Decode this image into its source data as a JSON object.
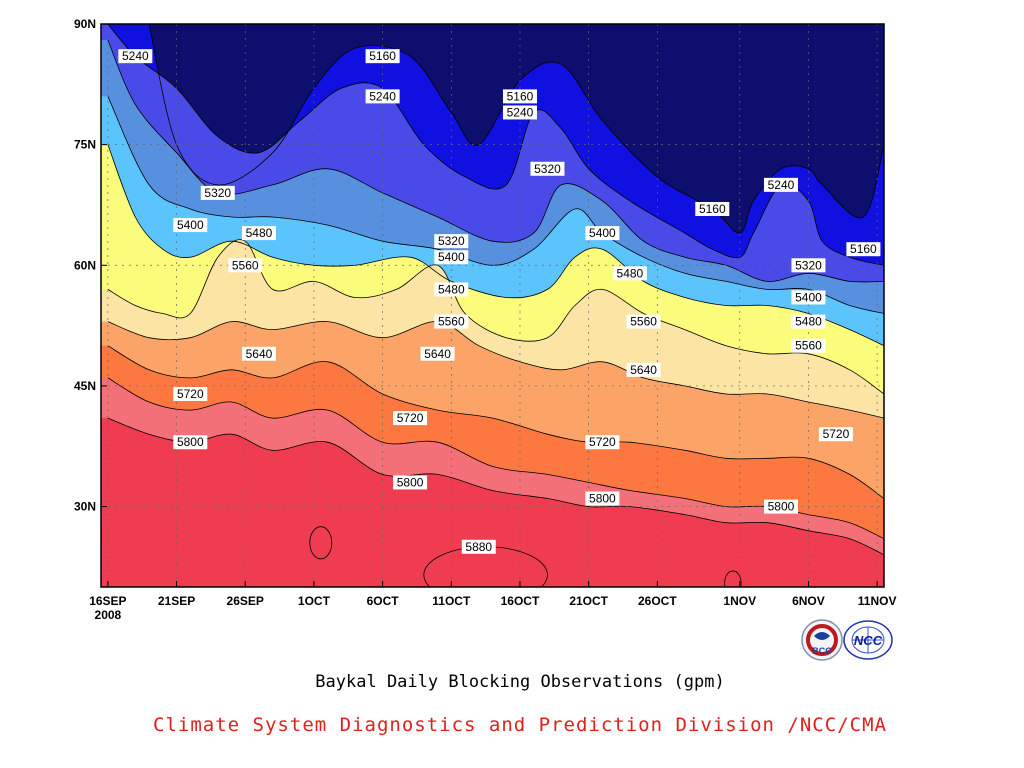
{
  "chart_data": {
    "type": "heatmap",
    "subtitle": "Baykal Daily Blocking Observations (gpm)",
    "credit": "Climate System Diagnostics and Prediction Division /NCC/CMA",
    "x_ticks": [
      {
        "label": "16SEP",
        "sub": "2008",
        "day": 0
      },
      {
        "label": "21SEP",
        "sub": "",
        "day": 5
      },
      {
        "label": "26SEP",
        "sub": "",
        "day": 10
      },
      {
        "label": "1OCT",
        "sub": "",
        "day": 15
      },
      {
        "label": "6OCT",
        "sub": "",
        "day": 20
      },
      {
        "label": "11OCT",
        "sub": "",
        "day": 25
      },
      {
        "label": "16OCT",
        "sub": "",
        "day": 30
      },
      {
        "label": "21OCT",
        "sub": "",
        "day": 35
      },
      {
        "label": "26OCT",
        "sub": "",
        "day": 40
      },
      {
        "label": "1NOV",
        "sub": "",
        "day": 46
      },
      {
        "label": "6NOV",
        "sub": "",
        "day": 51
      },
      {
        "label": "11NOV",
        "sub": "",
        "day": 56
      }
    ],
    "y_ticks": [
      {
        "label": "90N",
        "lat": 90
      },
      {
        "label": "75N",
        "lat": 75
      },
      {
        "label": "60N",
        "lat": 60
      },
      {
        "label": "45N",
        "lat": 45
      },
      {
        "label": "30N",
        "lat": 30
      }
    ],
    "xlim": [
      -0.5,
      56.5
    ],
    "ylim": [
      20,
      90
    ],
    "grid": true,
    "contour_levels": [
      5160,
      5240,
      5320,
      5400,
      5480,
      5560,
      5640,
      5720,
      5800,
      5880
    ],
    "band_colors": [
      "#0e0e6e",
      "#1010e0",
      "#4a4ae8",
      "#5890e0",
      "#5cc4fc",
      "#fcfc7c",
      "#fce4a4",
      "#fca468",
      "#fc7840",
      "#f47078",
      "#f03c50"
    ],
    "contour_lines": [
      {
        "level": 5160,
        "points": [
          [
            3,
            90
          ],
          [
            5,
            75
          ],
          [
            8,
            70
          ],
          [
            12,
            74
          ],
          [
            15,
            82
          ],
          [
            18,
            87
          ],
          [
            22,
            86
          ],
          [
            25,
            79
          ],
          [
            27,
            75
          ],
          [
            30,
            83
          ],
          [
            33,
            85
          ],
          [
            36,
            78
          ],
          [
            40,
            71
          ],
          [
            44,
            67
          ],
          [
            46,
            64
          ],
          [
            47,
            68
          ],
          [
            49,
            72
          ],
          [
            51,
            72
          ],
          [
            52,
            70
          ],
          [
            55,
            66
          ],
          [
            56.5,
            75
          ]
        ]
      },
      {
        "level": 5240,
        "points": [
          [
            0,
            90
          ],
          [
            2,
            86
          ],
          [
            5,
            82
          ],
          [
            8,
            76
          ],
          [
            11,
            74
          ],
          [
            14,
            78
          ],
          [
            17,
            82
          ],
          [
            20,
            82
          ],
          [
            23,
            75
          ],
          [
            26,
            71
          ],
          [
            29,
            70
          ],
          [
            31,
            79
          ],
          [
            33,
            77
          ],
          [
            35,
            72
          ],
          [
            38,
            68
          ],
          [
            42,
            64
          ],
          [
            44,
            62
          ],
          [
            46,
            61
          ],
          [
            47,
            64
          ],
          [
            49,
            70
          ],
          [
            51,
            68
          ],
          [
            52,
            63
          ],
          [
            54,
            61
          ],
          [
            56.5,
            60
          ]
        ]
      },
      {
        "level": 5320,
        "points": [
          [
            0,
            88
          ],
          [
            2,
            80
          ],
          [
            5,
            74
          ],
          [
            8,
            69
          ],
          [
            12,
            70
          ],
          [
            16,
            72
          ],
          [
            20,
            69
          ],
          [
            24,
            66
          ],
          [
            28,
            63
          ],
          [
            31,
            64
          ],
          [
            33,
            70
          ],
          [
            36,
            68
          ],
          [
            39,
            63
          ],
          [
            42,
            61
          ],
          [
            45,
            60
          ],
          [
            48,
            58
          ],
          [
            51,
            59
          ],
          [
            54,
            58
          ],
          [
            56.5,
            58
          ]
        ]
      },
      {
        "level": 5400,
        "points": [
          [
            0,
            81
          ],
          [
            3,
            70
          ],
          [
            6,
            67
          ],
          [
            9,
            66
          ],
          [
            12,
            66
          ],
          [
            16,
            65
          ],
          [
            20,
            63
          ],
          [
            24,
            62
          ],
          [
            28,
            60
          ],
          [
            31,
            62
          ],
          [
            34,
            67
          ],
          [
            36,
            64
          ],
          [
            39,
            61
          ],
          [
            42,
            59
          ],
          [
            45,
            58
          ],
          [
            48,
            57
          ],
          [
            51,
            57
          ],
          [
            54,
            55
          ],
          [
            56.5,
            54
          ]
        ]
      },
      {
        "level": 5480,
        "points": [
          [
            0,
            75
          ],
          [
            2,
            66
          ],
          [
            4,
            62
          ],
          [
            6,
            61
          ],
          [
            9,
            63
          ],
          [
            12,
            61
          ],
          [
            15,
            60
          ],
          [
            18,
            60
          ],
          [
            22,
            61
          ],
          [
            25,
            58
          ],
          [
            29,
            56
          ],
          [
            32,
            57
          ],
          [
            34,
            61
          ],
          [
            36,
            62
          ],
          [
            39,
            58
          ],
          [
            42,
            56
          ],
          [
            45,
            55
          ],
          [
            48,
            55
          ],
          [
            51,
            54
          ],
          [
            54,
            52
          ],
          [
            56.5,
            50
          ]
        ]
      },
      {
        "level": 5560,
        "points": [
          [
            0,
            57
          ],
          [
            2,
            55
          ],
          [
            4,
            54
          ],
          [
            6,
            54
          ],
          [
            8,
            61
          ],
          [
            10,
            63
          ],
          [
            12,
            57
          ],
          [
            15,
            58
          ],
          [
            18,
            56
          ],
          [
            21,
            57
          ],
          [
            24,
            60
          ],
          [
            26,
            54
          ],
          [
            29,
            51
          ],
          [
            32,
            51
          ],
          [
            34,
            55
          ],
          [
            36,
            57
          ],
          [
            39,
            54
          ],
          [
            42,
            52
          ],
          [
            45,
            50
          ],
          [
            48,
            49
          ],
          [
            51,
            49
          ],
          [
            54,
            47
          ],
          [
            56.5,
            44
          ]
        ]
      },
      {
        "level": 5640,
        "points": [
          [
            0,
            53
          ],
          [
            3,
            51
          ],
          [
            6,
            51
          ],
          [
            9,
            53
          ],
          [
            12,
            52
          ],
          [
            16,
            53
          ],
          [
            20,
            51
          ],
          [
            24,
            53
          ],
          [
            27,
            50
          ],
          [
            30,
            48
          ],
          [
            33,
            47
          ],
          [
            36,
            48
          ],
          [
            39,
            46
          ],
          [
            42,
            45
          ],
          [
            45,
            44
          ],
          [
            48,
            44
          ],
          [
            51,
            43
          ],
          [
            54,
            42
          ],
          [
            56.5,
            41
          ]
        ]
      },
      {
        "level": 5720,
        "points": [
          [
            0,
            50
          ],
          [
            3,
            47
          ],
          [
            6,
            46
          ],
          [
            9,
            47
          ],
          [
            12,
            46
          ],
          [
            16,
            48
          ],
          [
            20,
            44
          ],
          [
            24,
            42
          ],
          [
            28,
            41
          ],
          [
            32,
            39
          ],
          [
            35,
            38
          ],
          [
            38,
            38
          ],
          [
            42,
            37
          ],
          [
            45,
            36
          ],
          [
            48,
            36
          ],
          [
            51,
            36
          ],
          [
            54,
            34
          ],
          [
            56.5,
            31
          ]
        ]
      },
      {
        "level": 5800,
        "points": [
          [
            0,
            46
          ],
          [
            3,
            43
          ],
          [
            6,
            42
          ],
          [
            9,
            43
          ],
          [
            12,
            41
          ],
          [
            16,
            42
          ],
          [
            20,
            38
          ],
          [
            24,
            38
          ],
          [
            28,
            35
          ],
          [
            32,
            34
          ],
          [
            35,
            33
          ],
          [
            38,
            32
          ],
          [
            42,
            31
          ],
          [
            45,
            30
          ],
          [
            48,
            30
          ],
          [
            51,
            29
          ],
          [
            54,
            28
          ],
          [
            56.5,
            26
          ]
        ]
      },
      {
        "level": 5880,
        "points": [
          [
            0,
            41
          ],
          [
            3,
            39
          ],
          [
            6,
            38
          ],
          [
            9,
            39
          ],
          [
            12,
            37
          ],
          [
            16,
            38
          ],
          [
            20,
            34
          ],
          [
            24,
            34
          ],
          [
            28,
            32
          ],
          [
            32,
            31
          ],
          [
            35,
            30
          ],
          [
            38,
            30
          ],
          [
            42,
            29
          ],
          [
            45,
            28
          ],
          [
            48,
            28
          ],
          [
            51,
            27
          ],
          [
            54,
            26
          ],
          [
            56.5,
            24
          ]
        ]
      }
    ],
    "contour_labels": [
      {
        "text": "5240",
        "day": 2,
        "lat": 86
      },
      {
        "text": "5160",
        "day": 20,
        "lat": 86
      },
      {
        "text": "5240",
        "day": 20,
        "lat": 81
      },
      {
        "text": "5160",
        "day": 30,
        "lat": 81
      },
      {
        "text": "5240",
        "day": 30,
        "lat": 79
      },
      {
        "text": "5320",
        "day": 32,
        "lat": 72
      },
      {
        "text": "5240",
        "day": 49,
        "lat": 70
      },
      {
        "text": "5160",
        "day": 44,
        "lat": 67
      },
      {
        "text": "5160",
        "day": 55,
        "lat": 62
      },
      {
        "text": "5320",
        "day": 8,
        "lat": 69
      },
      {
        "text": "5400",
        "day": 6,
        "lat": 65
      },
      {
        "text": "5480",
        "day": 11,
        "lat": 64
      },
      {
        "text": "5320",
        "day": 25,
        "lat": 63
      },
      {
        "text": "5400",
        "day": 25,
        "lat": 61
      },
      {
        "text": "5400",
        "day": 36,
        "lat": 64
      },
      {
        "text": "5560",
        "day": 10,
        "lat": 60
      },
      {
        "text": "5480",
        "day": 25,
        "lat": 57
      },
      {
        "text": "5480",
        "day": 38,
        "lat": 59
      },
      {
        "text": "5320",
        "day": 51,
        "lat": 60
      },
      {
        "text": "5400",
        "day": 51,
        "lat": 56
      },
      {
        "text": "5480",
        "day": 51,
        "lat": 53
      },
      {
        "text": "5560",
        "day": 51,
        "lat": 50
      },
      {
        "text": "5560",
        "day": 25,
        "lat": 53
      },
      {
        "text": "5560",
        "day": 39,
        "lat": 53
      },
      {
        "text": "5640",
        "day": 11,
        "lat": 49
      },
      {
        "text": "5640",
        "day": 24,
        "lat": 49
      },
      {
        "text": "5640",
        "day": 39,
        "lat": 47
      },
      {
        "text": "5720",
        "day": 6,
        "lat": 44
      },
      {
        "text": "5720",
        "day": 22,
        "lat": 41
      },
      {
        "text": "5720",
        "day": 36,
        "lat": 38
      },
      {
        "text": "5720",
        "day": 53,
        "lat": 39
      },
      {
        "text": "5800",
        "day": 6,
        "lat": 38
      },
      {
        "text": "5800",
        "day": 22,
        "lat": 33
      },
      {
        "text": "5800",
        "day": 36,
        "lat": 31
      },
      {
        "text": "5800",
        "day": 49,
        "lat": 30
      },
      {
        "text": "5880",
        "day": 27,
        "lat": 25
      }
    ],
    "high_regions": [
      {
        "day": 15.5,
        "lat": 25.5,
        "rx": 0.8,
        "ry": 2
      },
      {
        "day": 27.5,
        "lat": 21.5,
        "rx": 4.5,
        "ry": 3.5
      },
      {
        "day": 45.5,
        "lat": 20.5,
        "rx": 0.6,
        "ry": 1.5
      }
    ]
  },
  "logos": {
    "bcc_text": "BCC",
    "ncc_text": "NCC"
  }
}
